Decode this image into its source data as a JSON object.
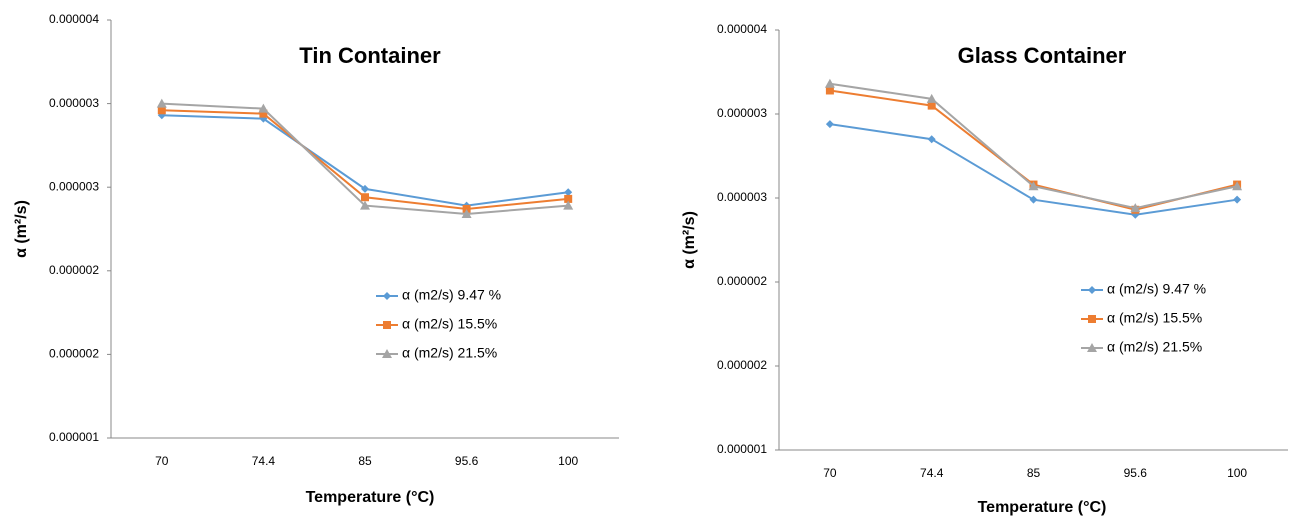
{
  "chart_data": [
    {
      "type": "line",
      "title": "Tin Container",
      "x_label": "Temperature (°C)",
      "y_label": "α (m²/s)",
      "categories": [
        "70",
        "74.4",
        "85",
        "95.6",
        "100"
      ],
      "ylim": [
        1.5e-06,
        4e-06
      ],
      "yticks": [
        {
          "value": 1.5e-06,
          "label": "0.000001"
        },
        {
          "value": 2e-06,
          "label": "0.000002"
        },
        {
          "value": 2.5e-06,
          "label": "0.000002"
        },
        {
          "value": 3e-06,
          "label": "0.000003"
        },
        {
          "value": 3.5e-06,
          "label": "0.000003"
        },
        {
          "value": 4e-06,
          "label": "0.000004"
        }
      ],
      "grid": false,
      "legend": "right",
      "series": [
        {
          "name": "α (m2/s) 9.47 %",
          "color": "#5b9bd5",
          "marker": "diamond",
          "values": [
            3.43e-06,
            3.41e-06,
            2.99e-06,
            2.89e-06,
            2.97e-06
          ]
        },
        {
          "name": "α (m2/s) 15.5%",
          "color": "#ed7d31",
          "marker": "square",
          "values": [
            3.46e-06,
            3.44e-06,
            2.94e-06,
            2.87e-06,
            2.93e-06
          ]
        },
        {
          "name": "α (m2/s) 21.5%",
          "color": "#a5a5a5",
          "marker": "triangle",
          "values": [
            3.5e-06,
            3.47e-06,
            2.89e-06,
            2.84e-06,
            2.89e-06
          ]
        }
      ]
    },
    {
      "type": "line",
      "title": "Glass Container",
      "x_label": "Temperature (°C)",
      "y_label": "α (m²/s)",
      "categories": [
        "70",
        "74.4",
        "85",
        "95.6",
        "100"
      ],
      "ylim": [
        1.5e-06,
        4e-06
      ],
      "yticks": [
        {
          "value": 1.5e-06,
          "label": "0.000001"
        },
        {
          "value": 2e-06,
          "label": "0.000002"
        },
        {
          "value": 2.5e-06,
          "label": "0.000002"
        },
        {
          "value": 3e-06,
          "label": "0.000003"
        },
        {
          "value": 3.5e-06,
          "label": "0.000003"
        },
        {
          "value": 4e-06,
          "label": "0.000004"
        }
      ],
      "grid": false,
      "legend": "right",
      "series": [
        {
          "name": "α (m2/s) 9.47 %",
          "color": "#5b9bd5",
          "marker": "diamond",
          "values": [
            3.44e-06,
            3.35e-06,
            2.99e-06,
            2.9e-06,
            2.99e-06
          ]
        },
        {
          "name": "α (m2/s) 15.5%",
          "color": "#ed7d31",
          "marker": "square",
          "values": [
            3.64e-06,
            3.55e-06,
            3.08e-06,
            2.93e-06,
            3.08e-06
          ]
        },
        {
          "name": "α (m2/s) 21.5%",
          "color": "#a5a5a5",
          "marker": "triangle",
          "values": [
            3.68e-06,
            3.59e-06,
            3.07e-06,
            2.94e-06,
            3.07e-06
          ]
        }
      ]
    }
  ]
}
